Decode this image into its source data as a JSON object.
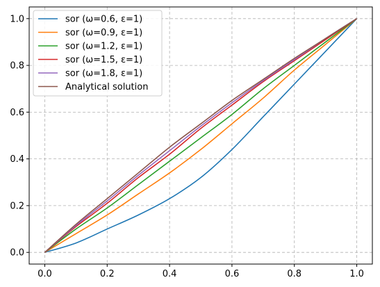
{
  "chart_data": {
    "type": "line",
    "title": "",
    "xlabel": "",
    "ylabel": "",
    "xlim": [
      -0.05,
      1.05
    ],
    "ylim": [
      -0.05,
      1.05
    ],
    "xticks": [
      0.0,
      0.2,
      0.4,
      0.6,
      0.8,
      1.0
    ],
    "xtick_labels": [
      "0.0",
      "0.2",
      "0.4",
      "0.6",
      "0.8",
      "1.0"
    ],
    "yticks": [
      0.0,
      0.2,
      0.4,
      0.6,
      0.8,
      1.0
    ],
    "ytick_labels": [
      "0.0",
      "0.2",
      "0.4",
      "0.6",
      "0.8",
      "1.0"
    ],
    "grid": true,
    "legend_position": "top-left",
    "x": [
      0.0,
      0.1,
      0.2,
      0.3,
      0.4,
      0.5,
      0.6,
      0.7,
      0.8,
      0.9,
      1.0
    ],
    "series": [
      {
        "name": "sor (ω=0.6, ε=1)",
        "color": "#1f77b4",
        "values": [
          0.0,
          0.04,
          0.1,
          0.16,
          0.23,
          0.32,
          0.44,
          0.58,
          0.72,
          0.86,
          1.0
        ]
      },
      {
        "name": "sor (ω=0.9, ε=1)",
        "color": "#ff7f0e",
        "values": [
          0.0,
          0.08,
          0.16,
          0.25,
          0.34,
          0.44,
          0.55,
          0.66,
          0.78,
          0.89,
          1.0
        ]
      },
      {
        "name": "sor (ω=1.2, ε=1)",
        "color": "#2ca02c",
        "values": [
          0.0,
          0.1,
          0.19,
          0.29,
          0.39,
          0.49,
          0.59,
          0.7,
          0.8,
          0.9,
          1.0
        ]
      },
      {
        "name": "sor (ω=1.5, ε=1)",
        "color": "#d62728",
        "values": [
          0.0,
          0.11,
          0.21,
          0.32,
          0.42,
          0.53,
          0.63,
          0.73,
          0.82,
          0.91,
          1.0
        ]
      },
      {
        "name": "sor (ω=1.8, ε=1)",
        "color": "#9467bd",
        "values": [
          0.0,
          0.115,
          0.22,
          0.33,
          0.435,
          0.54,
          0.64,
          0.735,
          0.825,
          0.915,
          1.0
        ]
      },
      {
        "name": "Analytical solution",
        "color": "#8c564b",
        "values": [
          0.0,
          0.12,
          0.23,
          0.34,
          0.45,
          0.55,
          0.65,
          0.74,
          0.83,
          0.915,
          1.0
        ]
      }
    ]
  }
}
